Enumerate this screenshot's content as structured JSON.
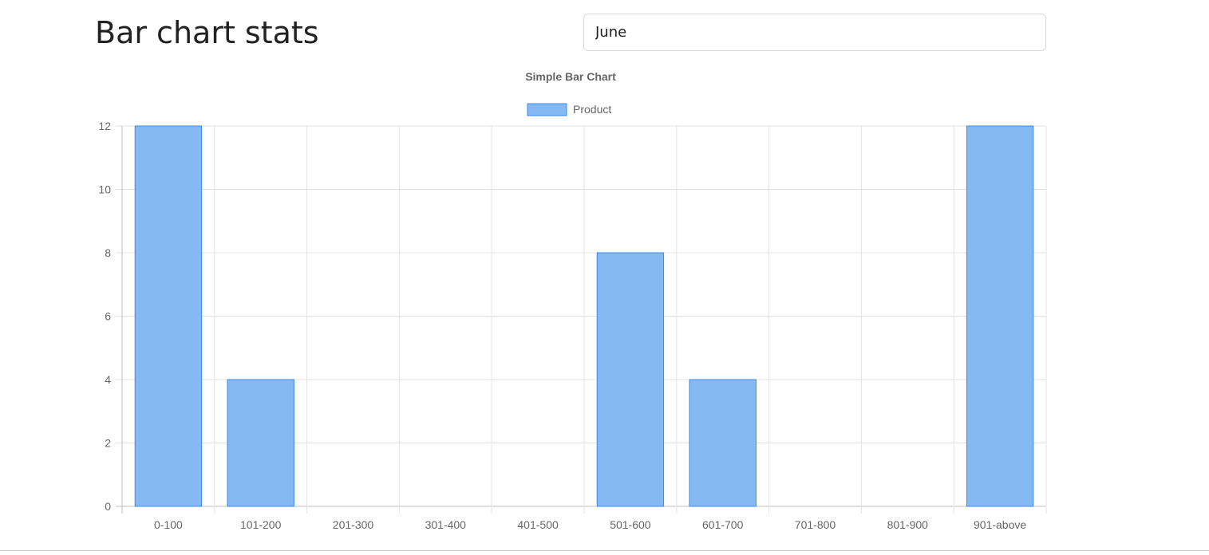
{
  "header": {
    "title": "Bar chart stats"
  },
  "month_select": {
    "value": "June"
  },
  "colors": {
    "bar_fill": "#85b9f3",
    "bar_stroke": "#3a8ae6",
    "grid": "#e3e3e3",
    "axis_text": "#666666"
  },
  "chart_data": {
    "type": "bar",
    "title": "Simple Bar Chart",
    "legend": [
      "Product"
    ],
    "legend_position": "top",
    "categories": [
      "0-100",
      "101-200",
      "201-300",
      "301-400",
      "401-500",
      "501-600",
      "601-700",
      "701-800",
      "801-900",
      "901-above"
    ],
    "series": [
      {
        "name": "Product",
        "values": [
          12,
          4,
          0,
          0,
          0,
          8,
          4,
          0,
          0,
          12
        ]
      }
    ],
    "ylim": [
      0,
      12
    ],
    "yticks": [
      0,
      2,
      4,
      6,
      8,
      10,
      12
    ],
    "grid": true
  }
}
